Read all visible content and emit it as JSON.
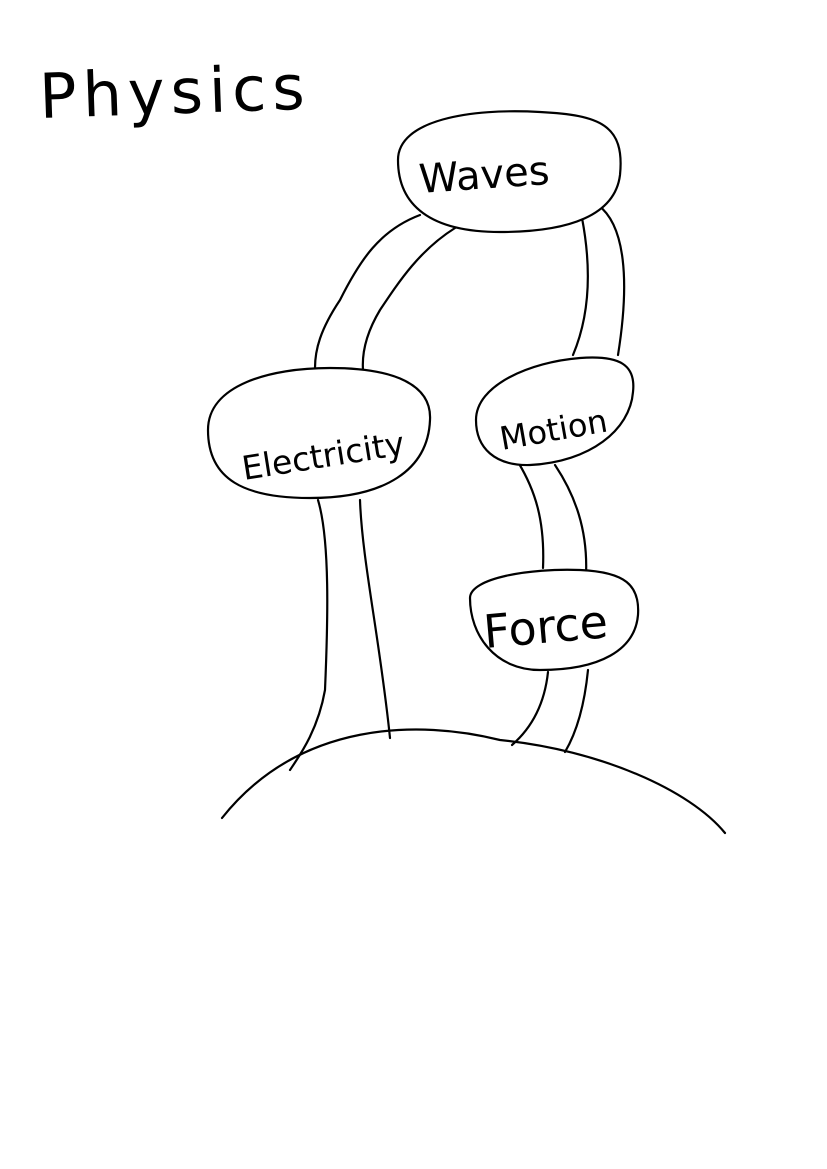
{
  "title": "Physics",
  "nodes": [
    {
      "id": "waves",
      "label": "Waves"
    },
    {
      "id": "electricity",
      "label": "Electricity"
    },
    {
      "id": "motion",
      "label": "Motion"
    },
    {
      "id": "force",
      "label": "Force"
    }
  ],
  "connections": [
    {
      "from": "waves",
      "to": "electricity"
    },
    {
      "from": "waves",
      "to": "motion"
    },
    {
      "from": "motion",
      "to": "force"
    },
    {
      "from": "electricity",
      "to": "ground"
    },
    {
      "from": "force",
      "to": "ground"
    }
  ],
  "colors": {
    "ink": "#000000",
    "paper": "#ffffff"
  }
}
